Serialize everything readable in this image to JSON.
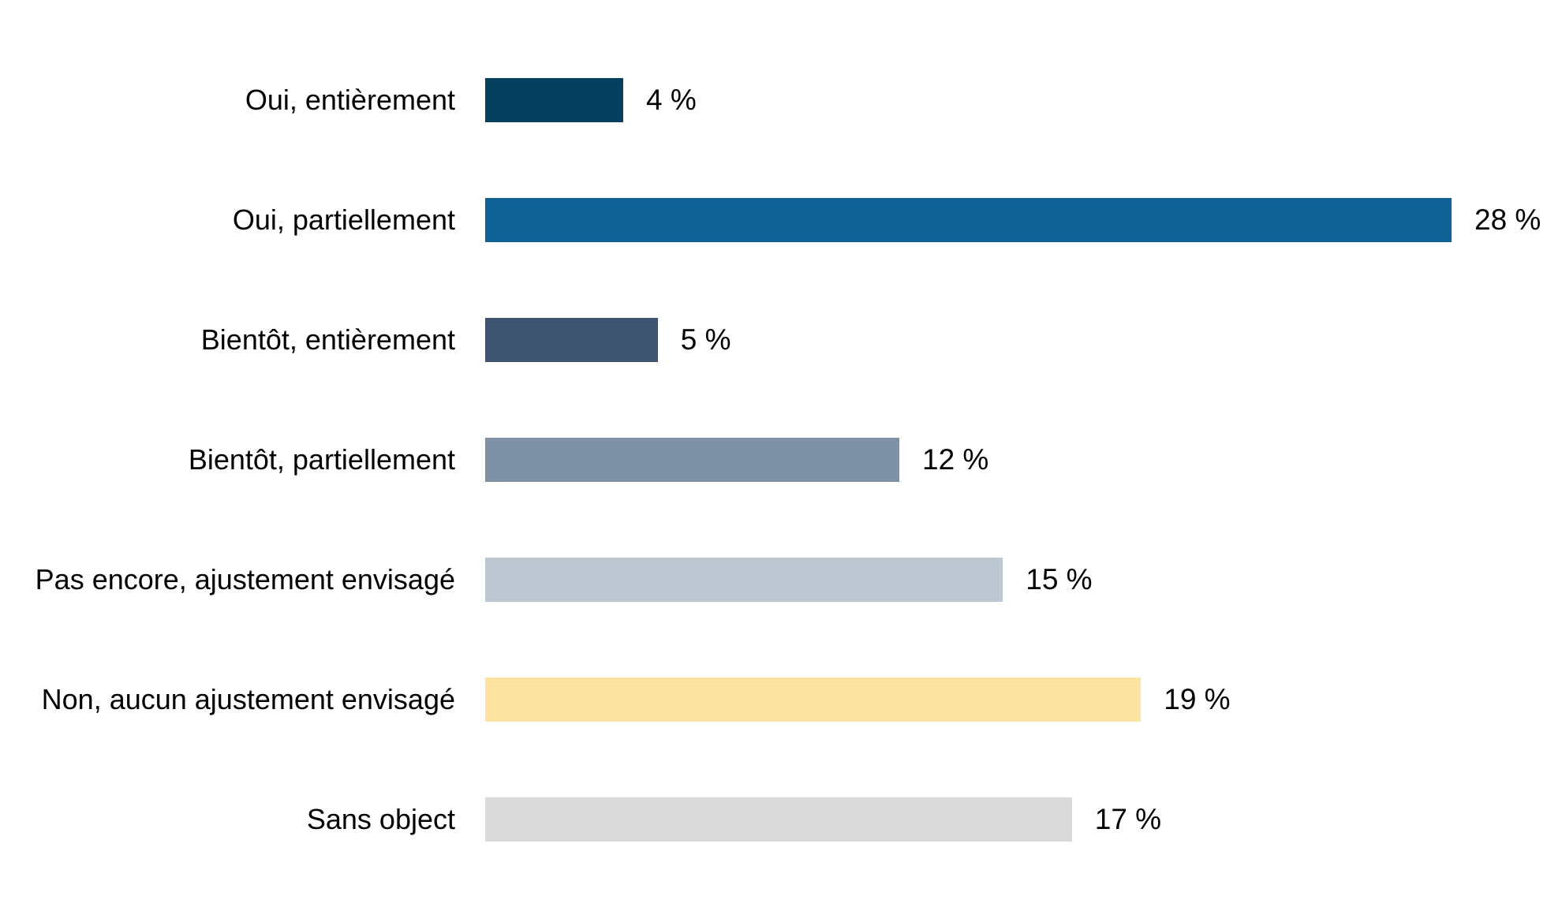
{
  "chart_data": {
    "type": "bar",
    "orientation": "horizontal",
    "title": "",
    "xlabel": "",
    "ylabel": "",
    "categories": [
      "Oui, entièrement",
      "Oui, partiellement",
      "Bientôt, entièrement",
      "Bientôt, partiellement",
      "Pas encore, ajustement envisagé",
      "Non, aucun ajustement envisagé",
      "Sans object"
    ],
    "values": [
      4,
      28,
      5,
      12,
      15,
      19,
      17
    ],
    "value_labels": [
      "4 %",
      "28 %",
      "5 %",
      "12 %",
      "15 %",
      "19 %",
      "17 %"
    ],
    "unit": "%",
    "colors": [
      "#05405f",
      "#0e6296",
      "#3e5470",
      "#7f92a5",
      "#bdc7d1",
      "#fde3a2",
      "#dadada"
    ],
    "xlim": [
      0,
      30
    ],
    "grid": false,
    "legend": false,
    "background": "#ffffff",
    "text_color": "#000000"
  }
}
